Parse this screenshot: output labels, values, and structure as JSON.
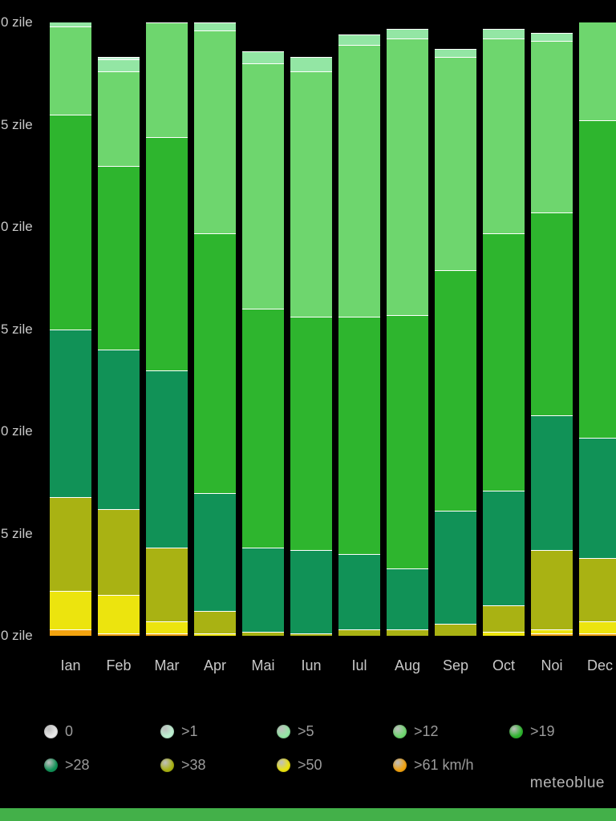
{
  "chart_data": {
    "type": "stacked-bar",
    "title": "",
    "xlabel": "",
    "ylabel": "zile",
    "grid": false,
    "legend_position": "bottom",
    "ylim": [
      0,
      30
    ],
    "categories": [
      "Ian",
      "Feb",
      "Mar",
      "Apr",
      "Mai",
      "Iun",
      "Iul",
      "Aug",
      "Sep",
      "Oct",
      "Noi",
      "Dec"
    ],
    "yticks": [
      {
        "label": "0 zile",
        "value": 30
      },
      {
        "label": "5 zile",
        "value": 25
      },
      {
        "label": "0 zile",
        "value": 20
      },
      {
        "label": "5 zile",
        "value": 15
      },
      {
        "label": "0 zile",
        "value": 10
      },
      {
        "label": "5 zile",
        "value": 5
      },
      {
        "label": "0 zile",
        "value": 0
      }
    ],
    "series": [
      {
        "name": ">61 km/h",
        "color": "#f2a30f",
        "values": [
          0.3,
          0.1,
          0.1,
          0,
          0,
          0,
          0,
          0,
          0,
          0,
          0.1,
          0.1
        ]
      },
      {
        "name": ">50",
        "color": "#ece40e",
        "values": [
          1.9,
          1.9,
          0.6,
          0.1,
          0,
          0,
          0,
          0,
          0,
          0.2,
          0.2,
          0.6
        ]
      },
      {
        "name": ">38",
        "color": "#a9b213",
        "values": [
          4.6,
          4.2,
          3.6,
          1.1,
          0.2,
          0.1,
          0.3,
          0.3,
          0.6,
          1.3,
          3.9,
          3.1
        ]
      },
      {
        "name": ">28",
        "color": "#119257",
        "values": [
          8.2,
          7.8,
          8.7,
          5.8,
          4.1,
          4.1,
          3.7,
          3.0,
          5.5,
          5.6,
          6.6,
          5.9
        ]
      },
      {
        "name": ">19",
        "color": "#2eb52e",
        "values": [
          10.5,
          9.0,
          11.4,
          12.7,
          11.7,
          11.4,
          11.6,
          12.4,
          11.8,
          12.6,
          9.9,
          15.5
        ]
      },
      {
        "name": ">12",
        "color": "#6ed66e",
        "values": [
          4.3,
          4.6,
          5.6,
          9.9,
          12.0,
          12.0,
          13.3,
          13.5,
          10.4,
          9.5,
          8.4,
          4.9
        ]
      },
      {
        "name": ">5",
        "color": "#93e6a4",
        "values": [
          1.0,
          0.6,
          0.8,
          0.4,
          0.6,
          0.7,
          0.5,
          0.5,
          0.4,
          0.5,
          0.4,
          0.8
        ]
      },
      {
        "name": ">1",
        "color": "#bef2d2",
        "values": [
          0.2,
          0.1,
          0.2,
          0,
          0,
          0,
          0,
          0,
          0,
          0,
          0,
          0.1
        ]
      },
      {
        "name": "0",
        "color": "#ebebeb",
        "values": [
          0,
          0,
          0,
          0,
          0,
          0,
          0,
          0,
          0,
          0,
          0,
          0
        ]
      }
    ],
    "legend": [
      "0",
      ">1",
      ">5",
      ">12",
      ">19",
      ">28",
      ">38",
      ">50",
      ">61 km/h"
    ]
  },
  "branding": {
    "logo": "meteoblue"
  },
  "footer": {
    "strip_color": "#43b049"
  }
}
